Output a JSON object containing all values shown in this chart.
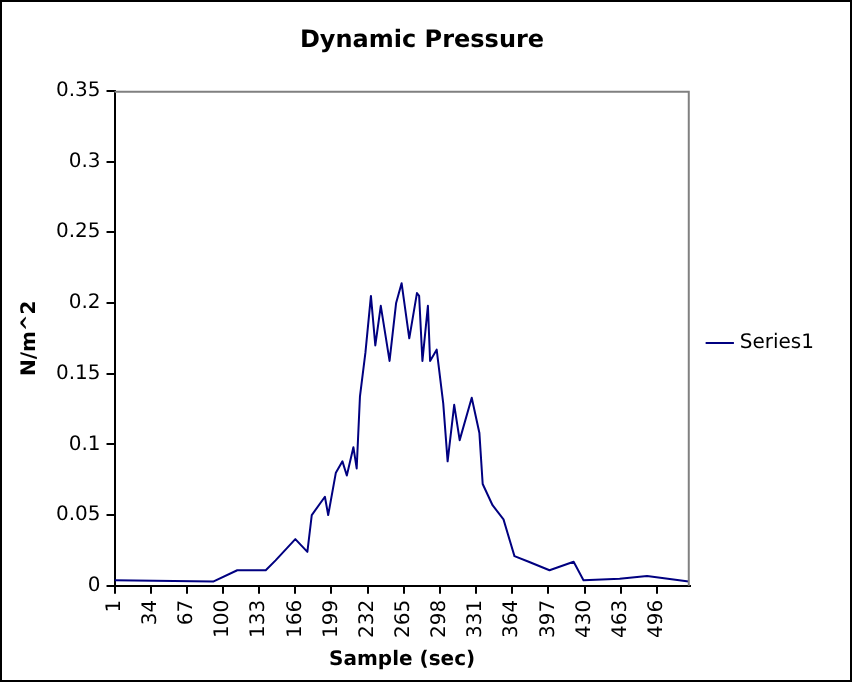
{
  "chart_data": {
    "type": "line",
    "title": "Dynamic Pressure",
    "xlabel": "Sample (sec)",
    "ylabel": "N/m^2",
    "x": [
      1,
      91,
      113,
      139,
      148,
      166,
      177,
      181,
      193,
      196,
      203,
      209,
      213,
      219,
      222,
      225,
      230,
      235,
      239,
      244,
      252,
      258,
      263,
      270,
      277,
      279,
      282,
      287,
      289,
      295,
      301,
      305,
      311,
      316,
      327,
      334,
      337,
      346,
      356,
      366,
      379,
      398,
      420,
      429,
      462,
      487,
      525
    ],
    "series": [
      {
        "name": "Series1",
        "color": "#000080",
        "values": [
          0.004,
          0.003,
          0.011,
          0.011,
          0.018,
          0.033,
          0.024,
          0.05,
          0.063,
          0.05,
          0.08,
          0.088,
          0.078,
          0.098,
          0.083,
          0.134,
          0.165,
          0.205,
          0.17,
          0.198,
          0.159,
          0.2,
          0.214,
          0.175,
          0.207,
          0.205,
          0.159,
          0.198,
          0.159,
          0.167,
          0.129,
          0.088,
          0.128,
          0.103,
          0.133,
          0.108,
          0.072,
          0.057,
          0.047,
          0.021,
          0.017,
          0.011,
          0.017,
          0.004,
          0.005,
          0.007,
          0.003
        ]
      }
    ],
    "xlim": [
      1,
      526
    ],
    "xticks": [
      1,
      34,
      67,
      100,
      133,
      166,
      199,
      232,
      265,
      298,
      331,
      364,
      397,
      430,
      463,
      496
    ],
    "ylim": [
      0,
      0.35
    ],
    "yticks": [
      0,
      0.05,
      0.1,
      0.15,
      0.2,
      0.25,
      0.3,
      0.35
    ],
    "grid": false,
    "legend": "right",
    "marker": "none",
    "line_style": "solid"
  }
}
